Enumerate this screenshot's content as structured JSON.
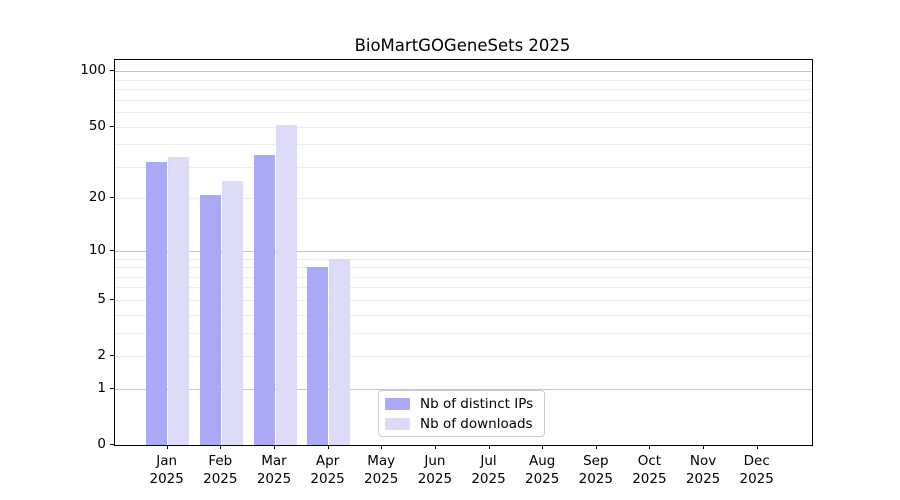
{
  "figure": {
    "title": "BioMartGOGeneSets 2025",
    "background_color": "#ffffff"
  },
  "legend": {
    "items": [
      {
        "label": "Nb of distinct IPs",
        "color": "#a9a9f6"
      },
      {
        "label": "Nb of downloads",
        "color": "#dcdcf8"
      }
    ],
    "border_color": "#cccccc",
    "position": "inside-bottom-center"
  },
  "chart_data": {
    "type": "bar",
    "title": "BioMartGOGeneSets 2025",
    "categories": [
      "Jan",
      "Feb",
      "Mar",
      "Apr",
      "May",
      "Jun",
      "Jul",
      "Aug",
      "Sep",
      "Oct",
      "Nov",
      "Dec"
    ],
    "year_label": "2025",
    "series": [
      {
        "name": "Nb of distinct IPs",
        "color": "#a9a9f6",
        "values": [
          32,
          21,
          35,
          8,
          0,
          0,
          0,
          0,
          0,
          0,
          0,
          0
        ]
      },
      {
        "name": "Nb of downloads",
        "color": "#dcdcf8",
        "values": [
          34,
          25,
          51,
          9,
          0,
          0,
          0,
          0,
          0,
          0,
          0,
          0
        ]
      }
    ],
    "xlabel": "",
    "ylabel": "",
    "yscale": "log10(1+x)",
    "ylim": [
      0,
      115
    ],
    "yticks": [
      0,
      1,
      2,
      5,
      10,
      20,
      50,
      100
    ],
    "grid": {
      "major_at": [
        1,
        10,
        100
      ],
      "minor_at": [
        2,
        3,
        4,
        5,
        6,
        7,
        8,
        9,
        20,
        30,
        40,
        50,
        60,
        70,
        80,
        90
      ],
      "major_color": "#c6c6c6",
      "minor_color": "#ededed"
    },
    "legend_position": "inside-bottom-center"
  }
}
